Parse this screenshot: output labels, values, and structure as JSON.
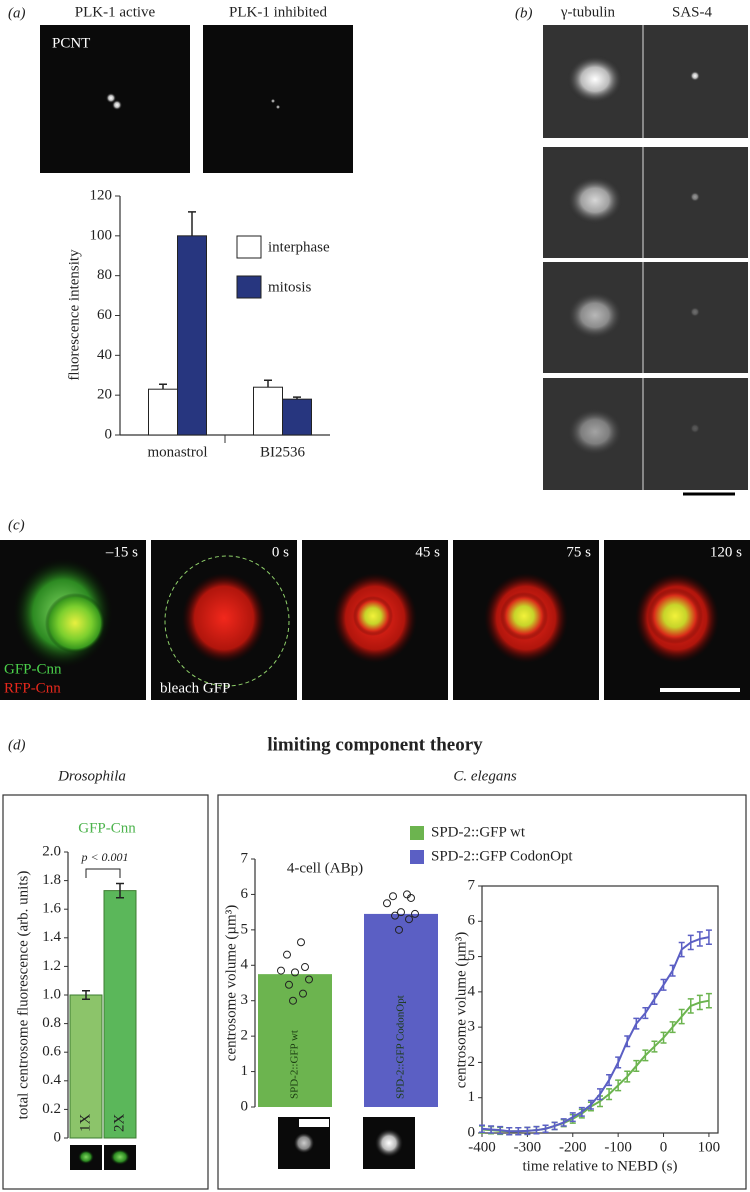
{
  "panels": {
    "a": "(a)",
    "b": "(b)",
    "c": "(c)",
    "d": "(d)"
  },
  "a_images": {
    "titles": [
      "PLK-1 active",
      "PLK-1 inhibited"
    ],
    "stain": "PCNT"
  },
  "b_images": {
    "titles": [
      "γ-tubulin",
      "SAS-4"
    ]
  },
  "c_images": {
    "times": [
      "–15 s",
      "0 s",
      "45 s",
      "75 s",
      "120 s"
    ],
    "labels": [
      "GFP-Cnn",
      "RFP-Cnn"
    ],
    "note": "bleach GFP"
  },
  "d_header": {
    "title": "limiting component theory",
    "left": "Drosophila",
    "right": "C. elegans",
    "right_subtitle": "4-cell (ABp)"
  },
  "chart_data": [
    {
      "type": "grouped-bar",
      "ylabel": "fluorescence intensity",
      "categories": [
        "monastrol",
        "BI2536"
      ],
      "series": [
        {
          "name": "interphase",
          "color": "#ffffff",
          "values": [
            23,
            24
          ],
          "errors": [
            2.5,
            3.5
          ]
        },
        {
          "name": "mitosis",
          "color": "#27367f",
          "values": [
            100,
            18
          ],
          "errors": [
            12,
            1
          ]
        }
      ],
      "ylim": [
        0,
        120
      ],
      "yticks": [
        0,
        20,
        40,
        60,
        80,
        100,
        120
      ]
    },
    {
      "type": "bar",
      "title": "GFP-Cnn",
      "ylabel": "total centrosome fluorescence (arb. units)",
      "categories": [
        "1X",
        "2X"
      ],
      "values": [
        1.0,
        1.73
      ],
      "errors": [
        0.03,
        0.05
      ],
      "colors": [
        "#8cc46a",
        "#5bb75a"
      ],
      "annotation": "p < 0.001",
      "ylim": [
        0,
        2.0
      ],
      "yticks": [
        0,
        0.2,
        0.4,
        0.6,
        0.8,
        {
          "value": 1,
          "label": "1.0"
        },
        1.2,
        1.4,
        1.6,
        1.8,
        {
          "value": 2,
          "label": "2.0"
        }
      ]
    },
    {
      "type": "dot-bar",
      "ylabel": "centrosome volume (µm³)",
      "categories": [
        "SPD-2::GFP wt",
        "SPD-2::GFP CodonOpt"
      ],
      "values": [
        3.75,
        5.45
      ],
      "colors": [
        "#6cb44f",
        "#5b5fc4"
      ],
      "points": [
        [
          4.65,
          4.3,
          3.95,
          3.85,
          3.8,
          3.6,
          3.45,
          3.2,
          3.0
        ],
        [
          6.0,
          5.95,
          5.9,
          5.75,
          5.5,
          5.45,
          5.4,
          5.3,
          5.0
        ]
      ],
      "ylim": [
        0,
        7
      ],
      "yticks": [
        0,
        1,
        2,
        3,
        4,
        5,
        6,
        7
      ]
    },
    {
      "type": "line",
      "xlabel": "time relative to NEBD (s)",
      "ylabel": "centrosome volume (µm³)",
      "x": [
        -400,
        -380,
        -360,
        -340,
        -320,
        -300,
        -280,
        -260,
        -240,
        -220,
        -200,
        -180,
        -160,
        -140,
        -120,
        -100,
        -80,
        -60,
        -40,
        -20,
        0,
        20,
        40,
        60,
        80,
        100
      ],
      "series": [
        {
          "name": "SPD-2::GFP wt",
          "color": "#6cb44f",
          "values": [
            0.1,
            0.08,
            0.06,
            0.05,
            0.05,
            0.06,
            0.08,
            0.12,
            0.2,
            0.28,
            0.4,
            0.55,
            0.75,
            0.9,
            1.1,
            1.35,
            1.6,
            1.9,
            2.2,
            2.45,
            2.7,
            3.0,
            3.3,
            3.6,
            3.7,
            3.75
          ],
          "errors": [
            0.1,
            0.1,
            0.1,
            0.1,
            0.1,
            0.1,
            0.1,
            0.1,
            0.1,
            0.1,
            0.12,
            0.12,
            0.12,
            0.15,
            0.15,
            0.15,
            0.15,
            0.15,
            0.15,
            0.15,
            0.15,
            0.15,
            0.2,
            0.2,
            0.2,
            0.2
          ]
        },
        {
          "name": "SPD-2::GFP CodonOpt",
          "color": "#5b5fc4",
          "values": [
            0.12,
            0.1,
            0.08,
            0.05,
            0.05,
            0.06,
            0.08,
            0.12,
            0.2,
            0.3,
            0.45,
            0.6,
            0.8,
            1.1,
            1.5,
            2.0,
            2.6,
            3.1,
            3.4,
            3.8,
            4.2,
            4.6,
            5.2,
            5.4,
            5.5,
            5.55
          ],
          "errors": [
            0.1,
            0.1,
            0.1,
            0.1,
            0.1,
            0.1,
            0.1,
            0.1,
            0.1,
            0.1,
            0.12,
            0.12,
            0.12,
            0.15,
            0.15,
            0.15,
            0.15,
            0.15,
            0.15,
            0.15,
            0.15,
            0.15,
            0.2,
            0.2,
            0.2,
            0.2
          ]
        }
      ],
      "xlim": [
        -400,
        120
      ],
      "xticks": [
        -400,
        -300,
        -200,
        -100,
        0,
        100
      ],
      "ylim": [
        0,
        7
      ],
      "yticks": [
        0,
        1,
        2,
        3,
        4,
        5,
        6,
        7
      ]
    }
  ]
}
